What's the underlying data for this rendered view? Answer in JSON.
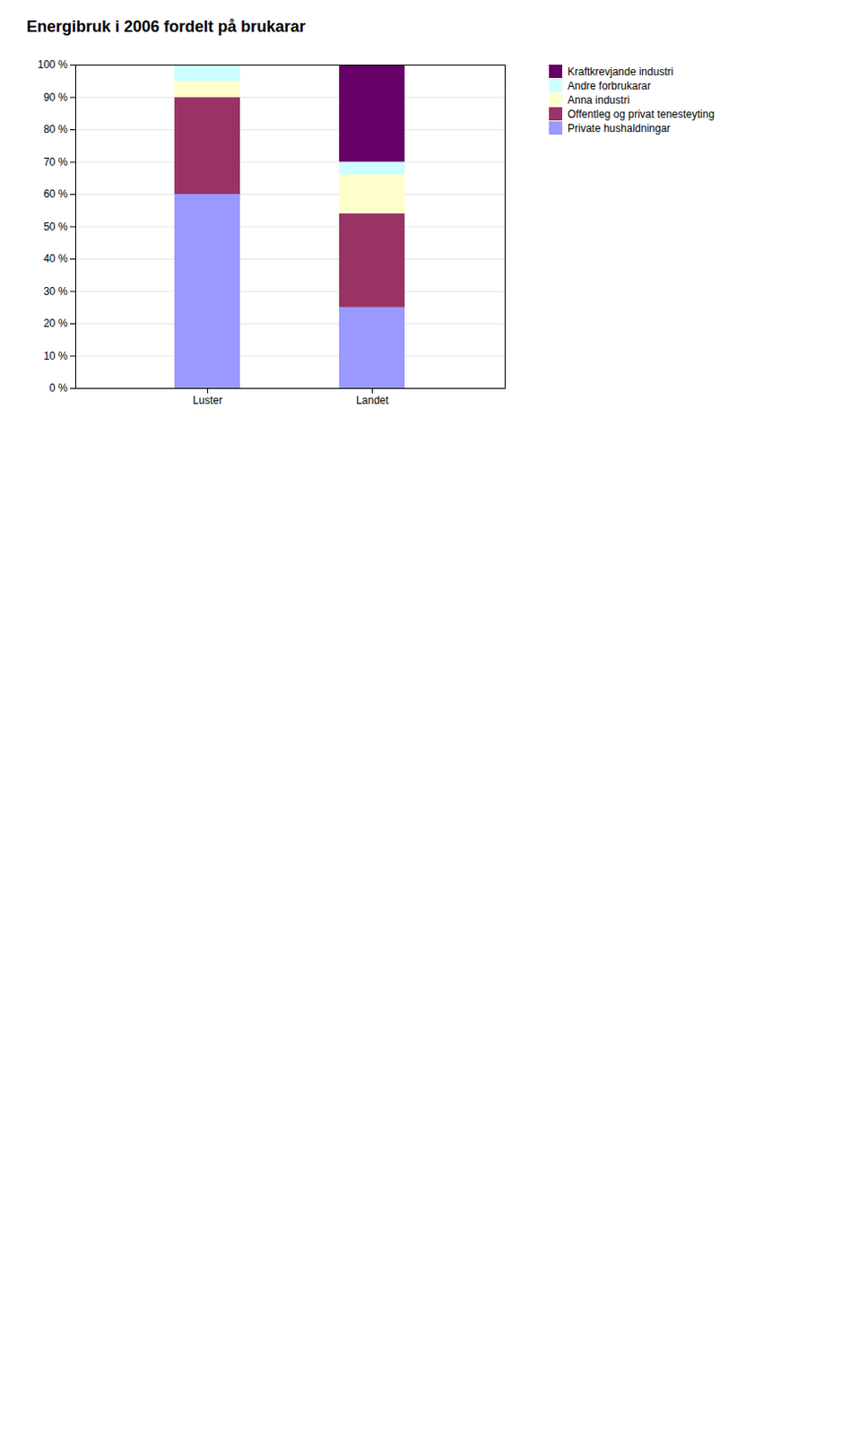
{
  "chart_data": {
    "type": "bar",
    "stacked": true,
    "title": "Energibruk i 2006 fordelt på brukarar",
    "categories": [
      "Luster",
      "Landet"
    ],
    "series": [
      {
        "name": "Private hushaldningar",
        "color": "#9999FF",
        "values": [
          60,
          25
        ]
      },
      {
        "name": "Offentleg og privat tenesteyting",
        "color": "#993366",
        "values": [
          30,
          29
        ]
      },
      {
        "name": "Anna industri",
        "color": "#FFFFCC",
        "values": [
          5,
          12
        ]
      },
      {
        "name": "Andre forbrukarar",
        "color": "#CCFFFF",
        "values": [
          5,
          4
        ]
      },
      {
        "name": "Kraftkrevjande industri",
        "color": "#660066",
        "values": [
          0,
          30
        ]
      }
    ],
    "ylim": [
      0,
      100
    ],
    "yticks": [
      {
        "value": 0,
        "label": "0 %"
      },
      {
        "value": 10,
        "label": "10 %"
      },
      {
        "value": 20,
        "label": "20 %"
      },
      {
        "value": 30,
        "label": "30 %"
      },
      {
        "value": 40,
        "label": "40 %"
      },
      {
        "value": 50,
        "label": "50 %"
      },
      {
        "value": 60,
        "label": "60 %"
      },
      {
        "value": 70,
        "label": "70 %"
      },
      {
        "value": 80,
        "label": "80 %"
      },
      {
        "value": 90,
        "label": "90 %"
      },
      {
        "value": 100,
        "label": "100 %"
      }
    ],
    "grid": true,
    "legend": "upper right"
  }
}
